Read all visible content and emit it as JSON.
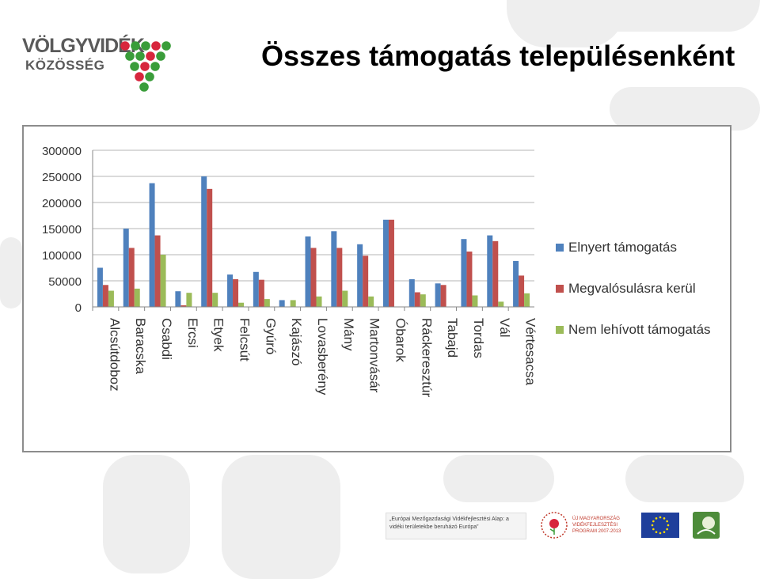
{
  "logo": {
    "line1": "VÖLGYVIDÉK",
    "line2": "KÖZÖSSÉG",
    "dot_colors": [
      "#d7263d",
      "#3a9d3a"
    ]
  },
  "title": "Összes támogatás településenként",
  "chart_data": {
    "type": "bar",
    "categories": [
      "Alcsútdoboz",
      "Baracska",
      "Csabdi",
      "Ercsi",
      "Etyek",
      "Felcsút",
      "Gyúró",
      "Kajászó",
      "Lovasberény",
      "Mány",
      "Martonvásár",
      "Óbarok",
      "Ráckeresztúr",
      "Tabajd",
      "Tordas",
      "Vál",
      "Vértesacsa"
    ],
    "series": [
      {
        "name": "Elnyert támogatás",
        "color": "#4f81bd",
        "values": [
          75000,
          150000,
          237000,
          30000,
          250000,
          62000,
          67000,
          13000,
          135000,
          145000,
          120000,
          167000,
          53000,
          45000,
          130000,
          137000,
          88000
        ]
      },
      {
        "name": "Megvalósulásra kerül",
        "color": "#c0504d",
        "values": [
          42000,
          113000,
          137000,
          3000,
          226000,
          53000,
          52000,
          0,
          113000,
          113000,
          98000,
          167000,
          28000,
          42000,
          106000,
          126000,
          60000
        ]
      },
      {
        "name": "Nem lehívott támogatás",
        "color": "#9bbb59",
        "values": [
          31000,
          35000,
          100000,
          27000,
          27000,
          8000,
          15000,
          13000,
          20000,
          31000,
          20000,
          0,
          24000,
          0,
          22000,
          10000,
          26000
        ]
      }
    ],
    "yticks": [
      "300000",
      "250000",
      "200000",
      "150000",
      "100000",
      "50000",
      "0"
    ],
    "ylim": [
      0,
      300000
    ],
    "grid": true,
    "legend_position": "right"
  },
  "sponsors": {
    "eafrd_text": "„Európai Mezőgazdasági Vidékfejlesztési Alap: a vidéki területekbe beruházó Európa”",
    "um_text": "ÚJ MAGYARORSZÁG VIDÉKFEJLESZTÉSI PROGRAM 2007-2013"
  }
}
